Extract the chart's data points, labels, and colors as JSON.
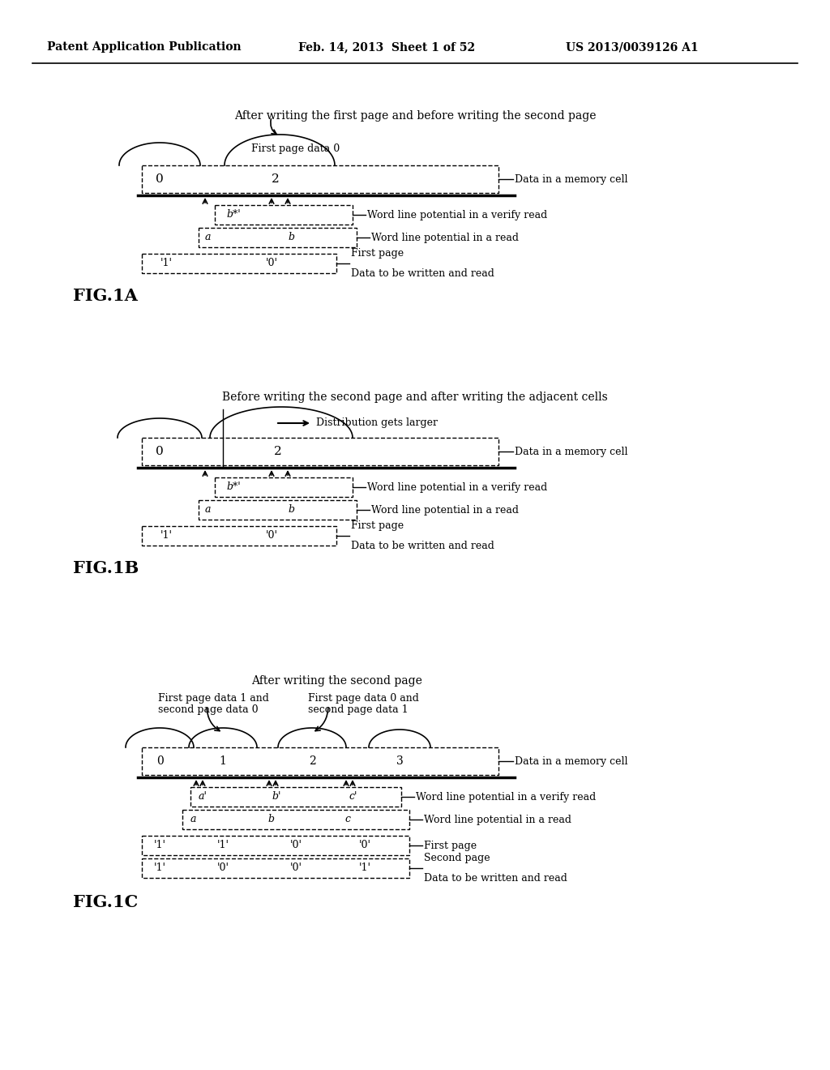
{
  "header_left": "Patent Application Publication",
  "header_mid": "Feb. 14, 2013  Sheet 1 of 52",
  "header_right": "US 2013/0039126 A1",
  "fig1a_title": "After writing the first page and before writing the second page",
  "fig1b_title": "Before writing the second page and after writing the adjacent cells",
  "fig1c_title": "After writing the second page",
  "bg_color": "#ffffff",
  "line_color": "#000000"
}
